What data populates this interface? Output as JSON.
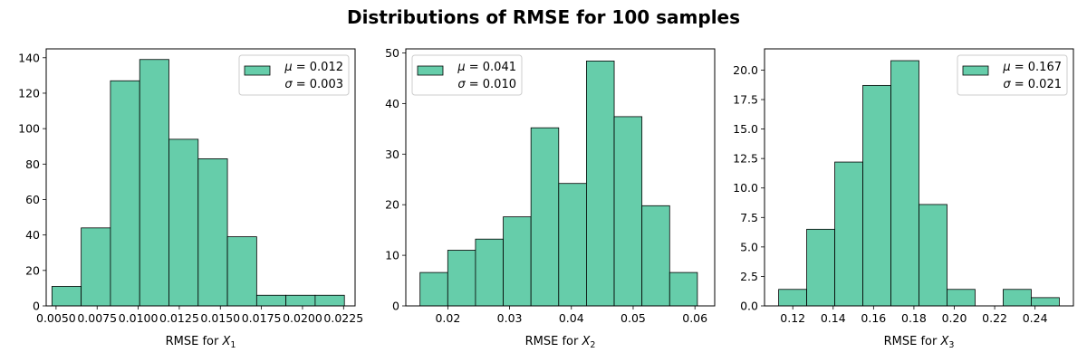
{
  "figure": {
    "title": "Distributions of RMSE for 100 samples",
    "bar_color": "#66cdaa",
    "edge_color": "#000000"
  },
  "chart_data": [
    {
      "type": "bar",
      "xlabel_text": "RMSE for ",
      "xlabel_var": "X",
      "xlabel_sub": "1",
      "xlim": [
        0.0044,
        0.0232
      ],
      "ylim": [
        0,
        145
      ],
      "xticks": [
        0.005,
        0.0075,
        0.01,
        0.0125,
        0.015,
        0.0175,
        0.02,
        0.0225
      ],
      "xtick_labels": [
        "0.0050",
        "0.0075",
        "0.0100",
        "0.0125",
        "0.0150",
        "0.0175",
        "0.0200",
        "0.0225"
      ],
      "yticks": [
        0,
        20,
        40,
        60,
        80,
        100,
        120,
        140
      ],
      "ytick_labels": [
        "0",
        "20",
        "40",
        "60",
        "80",
        "100",
        "120",
        "140"
      ],
      "bin_edges": [
        0.00475,
        0.00653,
        0.00831,
        0.01009,
        0.01187,
        0.01365,
        0.01543,
        0.01721,
        0.01899,
        0.02077,
        0.02255
      ],
      "values": [
        11,
        44,
        127,
        139,
        94,
        83,
        39,
        6,
        6,
        6
      ],
      "legend": {
        "mu": "0.012",
        "sigma": "0.003",
        "position": "upper right"
      }
    },
    {
      "type": "bar",
      "xlabel_text": "RMSE for ",
      "xlabel_var": "X",
      "xlabel_sub": "2",
      "xlim": [
        0.0132,
        0.0632
      ],
      "ylim": [
        0,
        50.8
      ],
      "xticks": [
        0.02,
        0.03,
        0.04,
        0.05,
        0.06
      ],
      "xtick_labels": [
        "0.02",
        "0.03",
        "0.04",
        "0.05",
        "0.06"
      ],
      "yticks": [
        0,
        10,
        20,
        30,
        40,
        50
      ],
      "ytick_labels": [
        "0",
        "10",
        "20",
        "30",
        "40",
        "50"
      ],
      "bin_edges": [
        0.0155,
        0.01999,
        0.02448,
        0.02897,
        0.03346,
        0.03795,
        0.04244,
        0.04693,
        0.05142,
        0.05591,
        0.0604
      ],
      "values": [
        6.6,
        11.0,
        13.2,
        17.6,
        35.2,
        24.2,
        48.4,
        37.4,
        19.8,
        6.6
      ],
      "legend": {
        "mu": "0.041",
        "sigma": "0.010",
        "position": "upper left"
      }
    },
    {
      "type": "bar",
      "xlabel_text": "RMSE for ",
      "xlabel_var": "X",
      "xlabel_sub": "3",
      "xlim": [
        0.106,
        0.259
      ],
      "ylim": [
        0,
        21.8
      ],
      "xticks": [
        0.12,
        0.14,
        0.16,
        0.18,
        0.2,
        0.22,
        0.24
      ],
      "xtick_labels": [
        "0.12",
        "0.14",
        "0.16",
        "0.18",
        "0.20",
        "0.22",
        "0.24"
      ],
      "yticks": [
        0,
        2.5,
        5,
        7.5,
        10,
        12.5,
        15,
        17.5,
        20
      ],
      "ytick_labels": [
        "0.0",
        "2.5",
        "5.0",
        "7.5",
        "10.0",
        "12.5",
        "15.0",
        "17.5",
        "20.0"
      ],
      "bin_edges": [
        0.113,
        0.1269,
        0.1408,
        0.1547,
        0.1686,
        0.1825,
        0.1964,
        0.2103,
        0.2242,
        0.2381,
        0.252
      ],
      "values": [
        1.4,
        6.5,
        12.2,
        18.7,
        20.8,
        8.6,
        1.4,
        0,
        1.4,
        0.7
      ],
      "legend": {
        "mu": "0.167",
        "sigma": "0.021",
        "position": "upper right"
      }
    }
  ]
}
